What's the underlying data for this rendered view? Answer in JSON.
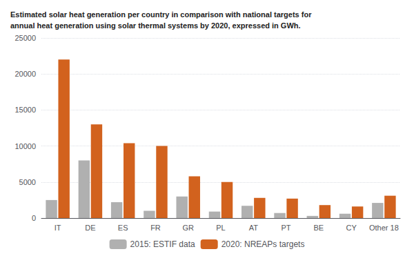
{
  "chart_data": {
    "type": "bar",
    "title": "Estimated solar heat generation per country in comparison with national targets for\nannual heat generation using solar thermal systems by 2020, expressed in GWh.",
    "categories": [
      "IT",
      "DE",
      "ES",
      "FR",
      "GR",
      "PL",
      "AT",
      "PT",
      "BE",
      "CY",
      "Other 18"
    ],
    "series": [
      {
        "name": "2015: ESTIF data",
        "color": "#b0b0b0",
        "values": [
          2500,
          8000,
          2200,
          1000,
          3000,
          900,
          1700,
          700,
          300,
          600,
          2100
        ]
      },
      {
        "name": "2020: NREAPs targets",
        "color": "#d2621e",
        "values": [
          22000,
          13000,
          10400,
          10000,
          5800,
          5000,
          2800,
          2700,
          1800,
          1600,
          3100
        ]
      }
    ],
    "ylim": [
      0,
      25000
    ],
    "yticks": [
      0,
      5000,
      10000,
      15000,
      20000,
      25000
    ],
    "grid": true,
    "legend": "bottom"
  }
}
